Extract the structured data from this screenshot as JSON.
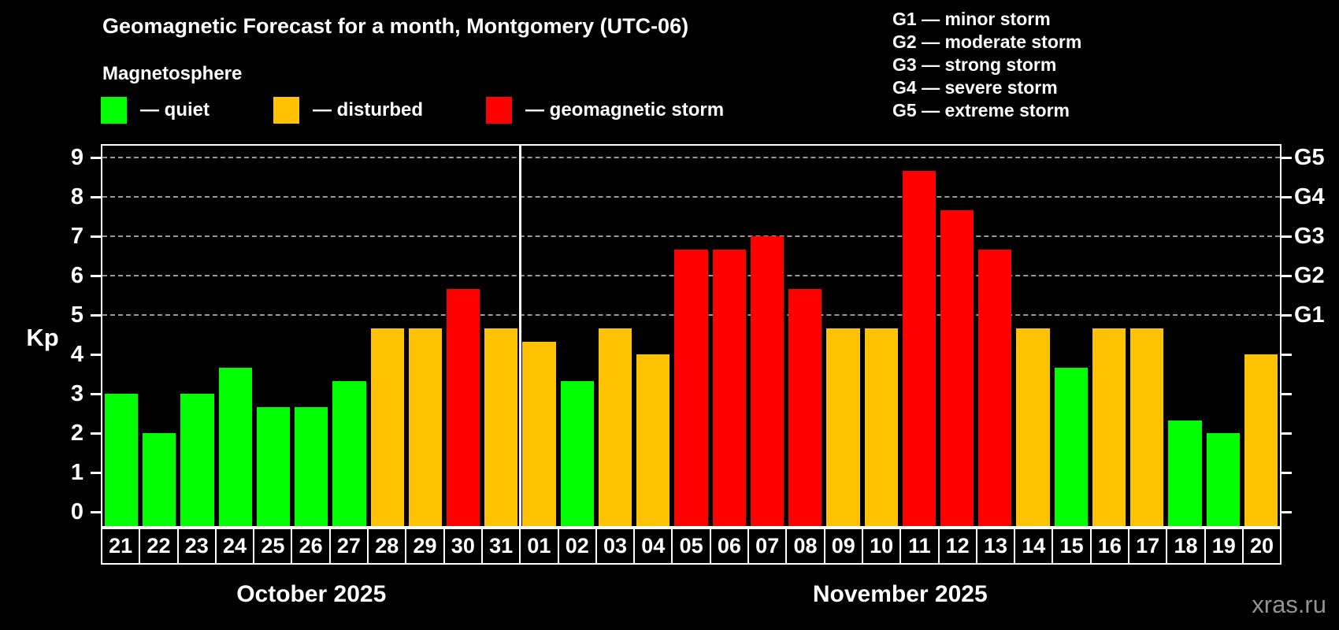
{
  "header": {
    "title": "Geomagnetic Forecast for a month, Montgomery (UTC-06)",
    "subtitle": "Magnetosphere"
  },
  "legend": {
    "items": [
      {
        "key": "quiet",
        "label": "— quiet",
        "color": "#00ff00"
      },
      {
        "key": "disturbed",
        "label": "— disturbed",
        "color": "#ffc200"
      },
      {
        "key": "storm",
        "label": "— geomagnetic storm",
        "color": "#ff0000"
      }
    ]
  },
  "g_scale_legend": {
    "items": [
      "G1 — minor storm",
      "G2 — moderate storm",
      "G3 — strong storm",
      "G4 — severe storm",
      "G5 — extreme storm"
    ]
  },
  "watermark": "xras.ru",
  "chart_data": {
    "type": "bar",
    "title": "Geomagnetic Forecast for a month, Montgomery (UTC-06)",
    "ylabel": "Kp",
    "ylim": [
      0,
      9.35
    ],
    "y_ticks": [
      0,
      1,
      2,
      3,
      4,
      5,
      6,
      7,
      8,
      9
    ],
    "gridlines_at": [
      5,
      6,
      7,
      8,
      9
    ],
    "grid": "dashed horizontal lines at storm levels only",
    "legend_position": "top-left",
    "right_axis_labels": [
      {
        "kp": 5,
        "label": "G1"
      },
      {
        "kp": 6,
        "label": "G2"
      },
      {
        "kp": 7,
        "label": "G3"
      },
      {
        "kp": 8,
        "label": "G4"
      },
      {
        "kp": 9,
        "label": "G5"
      }
    ],
    "categories": [
      "21",
      "22",
      "23",
      "24",
      "25",
      "26",
      "27",
      "28",
      "29",
      "30",
      "31",
      "01",
      "02",
      "03",
      "04",
      "05",
      "06",
      "07",
      "08",
      "09",
      "10",
      "11",
      "12",
      "13",
      "14",
      "15",
      "16",
      "17",
      "18",
      "19",
      "20"
    ],
    "values": [
      3,
      2,
      3,
      3.67,
      2.67,
      2.67,
      3.33,
      4.67,
      4.67,
      5.67,
      4.67,
      4.33,
      3.33,
      4.67,
      4,
      6.67,
      6.67,
      7,
      5.67,
      4.67,
      4.67,
      8.67,
      7.67,
      6.67,
      4.67,
      3.67,
      4.67,
      4.67,
      2.33,
      2,
      4
    ],
    "statuses": [
      "quiet",
      "quiet",
      "quiet",
      "quiet",
      "quiet",
      "quiet",
      "quiet",
      "disturbed",
      "disturbed",
      "storm",
      "disturbed",
      "disturbed",
      "quiet",
      "disturbed",
      "disturbed",
      "storm",
      "storm",
      "storm",
      "storm",
      "disturbed",
      "disturbed",
      "storm",
      "storm",
      "storm",
      "disturbed",
      "quiet",
      "disturbed",
      "disturbed",
      "quiet",
      "quiet",
      "disturbed"
    ],
    "color_map": {
      "quiet": "#00ff00",
      "disturbed": "#ffc200",
      "storm": "#ff0000"
    },
    "month_spans": [
      {
        "label": "October 2025",
        "count": 11
      },
      {
        "label": "November 2025",
        "count": 20
      }
    ]
  }
}
